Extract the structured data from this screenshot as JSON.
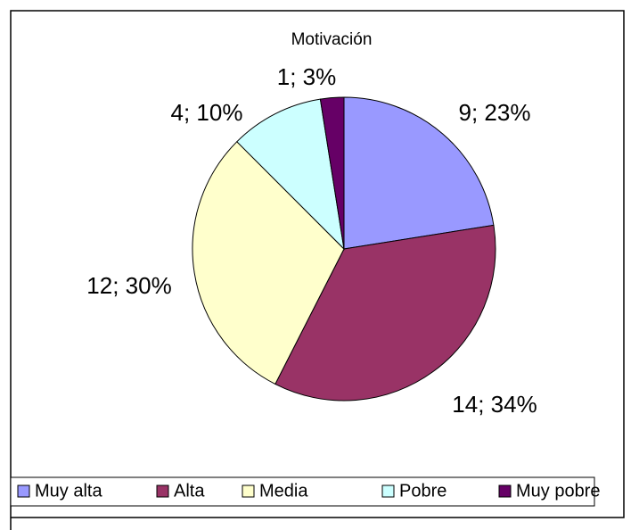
{
  "chart_data": {
    "type": "pie",
    "title": "Motivación",
    "categories": [
      "Muy alta",
      "Alta",
      "Media",
      "Pobre",
      "Muy pobre"
    ],
    "values": [
      9,
      14,
      12,
      4,
      1
    ],
    "value_labels": [
      "9; 23%",
      "14; 34%",
      "12; 30%",
      "4; 10%",
      "1; 3%"
    ],
    "colors": [
      "#9999ff",
      "#993366",
      "#ffffcc",
      "#ccffff",
      "#660066"
    ],
    "legend": "bottom"
  }
}
